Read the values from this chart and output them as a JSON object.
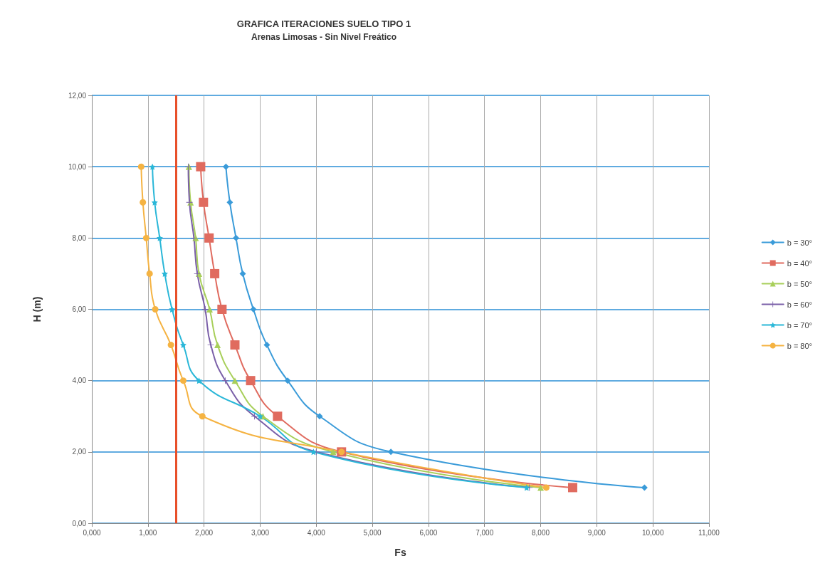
{
  "chart_data": {
    "type": "line",
    "title": "GRAFICA ITERACIONES SUELO TIPO 1",
    "subtitle": "Arenas Limosas - Sin Nivel Freático",
    "xlabel": "Fs",
    "ylabel": "H (m)",
    "xlim": [
      0,
      11
    ],
    "ylim": [
      0,
      12
    ],
    "xticks": [
      {
        "value": 0,
        "label": "0,000"
      },
      {
        "value": 1,
        "label": "1,000"
      },
      {
        "value": 2,
        "label": "2,000"
      },
      {
        "value": 3,
        "label": "3,000"
      },
      {
        "value": 4,
        "label": "4,000"
      },
      {
        "value": 5,
        "label": "5,000"
      },
      {
        "value": 6,
        "label": "6,000"
      },
      {
        "value": 7,
        "label": "7,000"
      },
      {
        "value": 8,
        "label": "8,000"
      },
      {
        "value": 9,
        "label": "9,000"
      },
      {
        "value": 10,
        "label": "10,000"
      },
      {
        "value": 11,
        "label": "11,000"
      }
    ],
    "yticks": [
      {
        "value": 0,
        "label": "0,00"
      },
      {
        "value": 2,
        "label": "2,00"
      },
      {
        "value": 4,
        "label": "4,00"
      },
      {
        "value": 6,
        "label": "6,00"
      },
      {
        "value": 8,
        "label": "8,00"
      },
      {
        "value": 10,
        "label": "10,00"
      },
      {
        "value": 12,
        "label": "12,00"
      }
    ],
    "grid": true,
    "legend": "right",
    "series": [
      {
        "name": "b = 30°",
        "color": "#3a9bd9",
        "marker": "diamond",
        "x": [
          9.85,
          5.33,
          4.06,
          3.49,
          3.12,
          2.88,
          2.69,
          2.57,
          2.46,
          2.39
        ],
        "values": [
          1,
          2,
          3,
          4,
          5,
          6,
          7,
          8,
          9,
          10
        ]
      },
      {
        "name": "b = 40°",
        "color": "#e06b5f",
        "marker": "square",
        "x": [
          8.57,
          4.45,
          3.31,
          2.83,
          2.55,
          2.32,
          2.19,
          2.09,
          1.99,
          1.94
        ],
        "values": [
          1,
          2,
          3,
          4,
          5,
          6,
          7,
          8,
          9,
          10
        ]
      },
      {
        "name": "b = 50°",
        "color": "#a8cf5a",
        "marker": "triangle",
        "x": [
          8.0,
          4.3,
          3.05,
          2.55,
          2.24,
          2.1,
          1.91,
          1.85,
          1.76,
          1.73
        ],
        "values": [
          1,
          2,
          3,
          4,
          5,
          6,
          7,
          8,
          9,
          10
        ]
      },
      {
        "name": "b = 60°",
        "color": "#7a5fa8",
        "marker": "cross",
        "x": [
          7.8,
          4.0,
          2.9,
          2.38,
          2.12,
          2.02,
          1.88,
          1.82,
          1.74,
          1.72
        ],
        "values": [
          1,
          2,
          3,
          4,
          5,
          6,
          7,
          8,
          9,
          10
        ]
      },
      {
        "name": "b = 70°",
        "color": "#2ab7d8",
        "marker": "star",
        "x": [
          7.75,
          3.95,
          3.0,
          1.91,
          1.63,
          1.43,
          1.3,
          1.21,
          1.12,
          1.08
        ],
        "values": [
          1,
          2,
          3,
          4,
          5,
          6,
          7,
          8,
          9,
          10
        ]
      },
      {
        "name": "b = 80°",
        "color": "#f5b342",
        "marker": "circle",
        "x": [
          8.1,
          4.45,
          1.97,
          1.63,
          1.41,
          1.13,
          1.03,
          0.97,
          0.91,
          0.88
        ],
        "values": [
          1,
          2,
          3,
          4,
          5,
          6,
          7,
          8,
          9,
          10
        ]
      }
    ],
    "ref_lines": [
      {
        "axis": "x",
        "value": 1.5,
        "color": "#e8502a"
      }
    ]
  }
}
